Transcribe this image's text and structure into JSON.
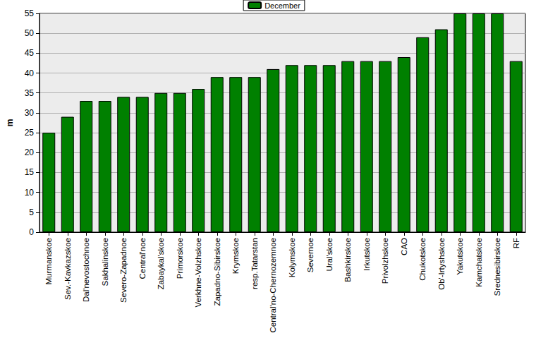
{
  "chart_data": {
    "type": "bar",
    "y_label": "m",
    "categories": [
      "Murmanskoe",
      "Sev.-Kavkazskoe",
      "Dal'nevostochnoe",
      "Sakhalinskoe",
      "Severo-Zapadnoe",
      "Central'noe",
      "Zabaykal'skoe",
      "Primorskoe",
      "Verkhne-Volzhskoe",
      "Zapadno-Sibirskoe",
      "Krymskoe",
      "resp.Tatarstan",
      "Central'no-Chernozemnoe",
      "Kolymskoe",
      "Severnoe",
      "Ural'skoe",
      "Bashkirskoe",
      "Irkutskoe",
      "Privolzhskoe",
      "CAO",
      "Chukotskoe",
      "Ob'-Irtyshskoe",
      "Yakutskoe",
      "Kamchatskoe",
      "Srednesibirskoe",
      "RF"
    ],
    "series": [
      {
        "name": "December",
        "color": "#008000",
        "values": [
          25,
          29,
          33,
          33,
          34,
          34,
          35,
          35,
          36,
          39,
          39,
          39,
          41,
          42,
          42,
          42,
          43,
          43,
          43,
          44,
          49,
          51,
          55,
          55,
          55,
          43
        ]
      }
    ],
    "ylim": [
      0,
      55
    ],
    "yticks": [
      0,
      5,
      10,
      15,
      20,
      25,
      30,
      35,
      40,
      45,
      50,
      55
    ],
    "grid": true,
    "legend": "top"
  }
}
